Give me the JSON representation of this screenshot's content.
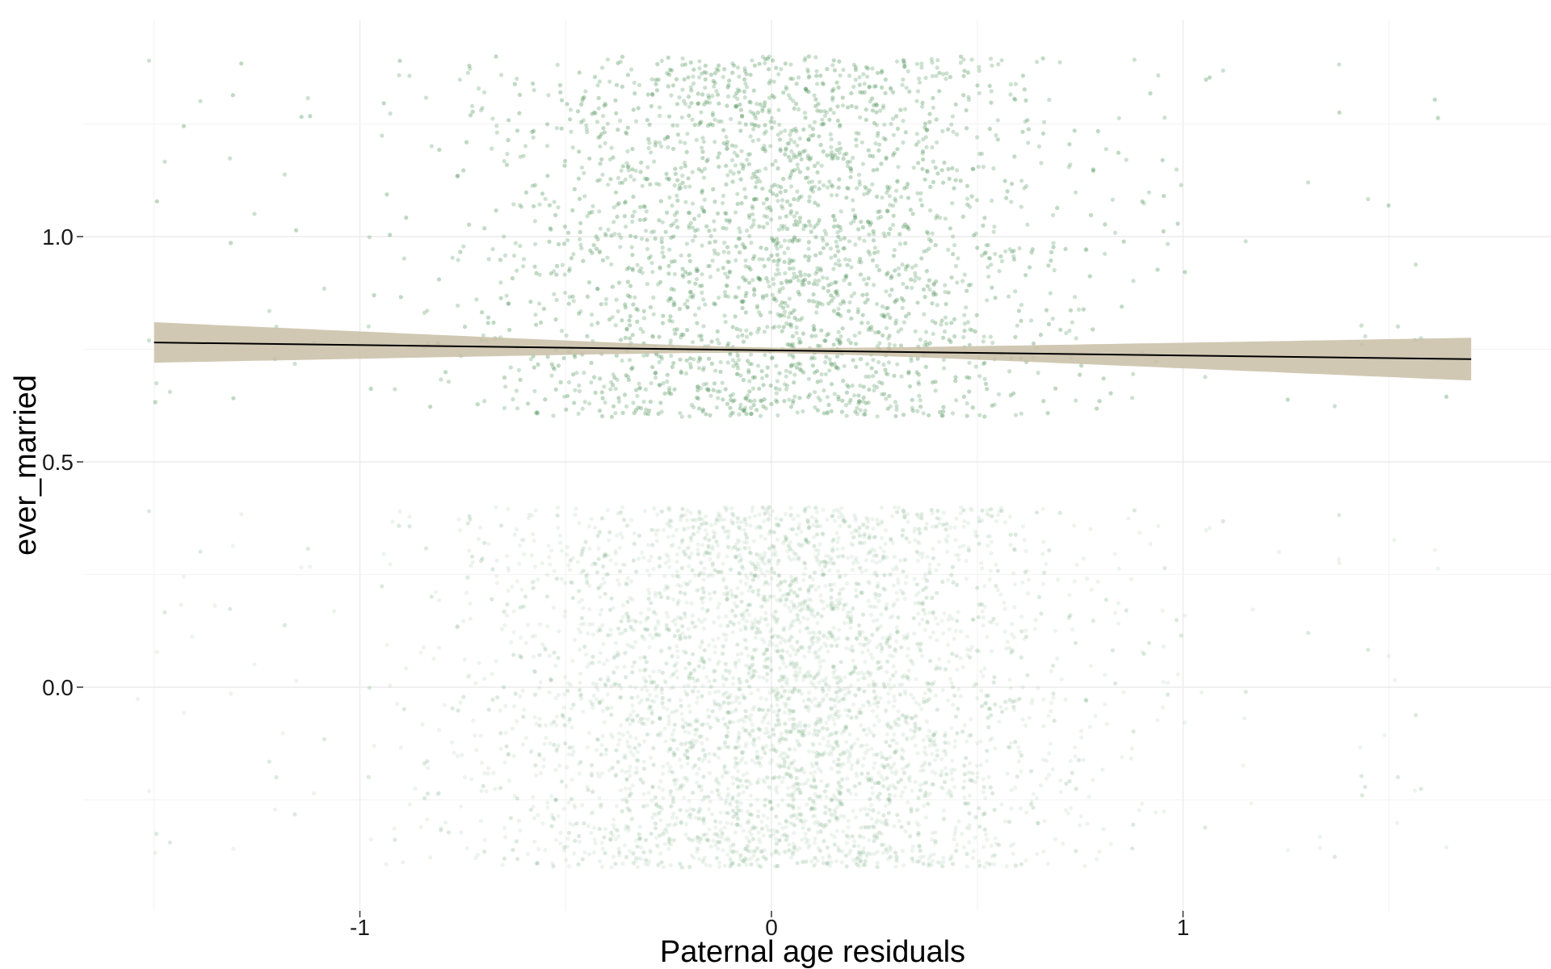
{
  "chart_data": {
    "type": "scatter",
    "xlabel": "Paternal age residuals",
    "ylabel": "ever_married",
    "xlim": [
      -1.5,
      1.6
    ],
    "ylim": [
      -0.35,
      1.3
    ],
    "x_ticks": [
      {
        "value": -1,
        "label": "-1"
      },
      {
        "value": 0,
        "label": "0"
      },
      {
        "value": 1,
        "label": "1"
      }
    ],
    "y_ticks": [
      {
        "value": 0.0,
        "label": "0.0"
      },
      {
        "value": 0.5,
        "label": "0.5"
      },
      {
        "value": 1.0,
        "label": "1.0"
      }
    ],
    "grid": true,
    "point_color": "#4a8f5a",
    "point_alpha": 0.1,
    "point_groups": [
      {
        "outcome": 0,
        "jitter_y_range": [
          -0.4,
          0.4
        ],
        "x_mean": 0.0,
        "x_sd": 0.35
      },
      {
        "outcome": 1,
        "jitter_y_range": [
          0.6,
          1.4
        ],
        "x_mean": 0.0,
        "x_sd": 0.35
      }
    ],
    "fit_line": {
      "method": "lm",
      "color": "#000000",
      "x": [
        -1.5,
        1.7
      ],
      "y": [
        0.765,
        0.728
      ],
      "ci_lower": [
        0.72,
        0.68
      ],
      "ci_upper": [
        0.81,
        0.775
      ],
      "ci_fill": "#c9bea6"
    }
  }
}
